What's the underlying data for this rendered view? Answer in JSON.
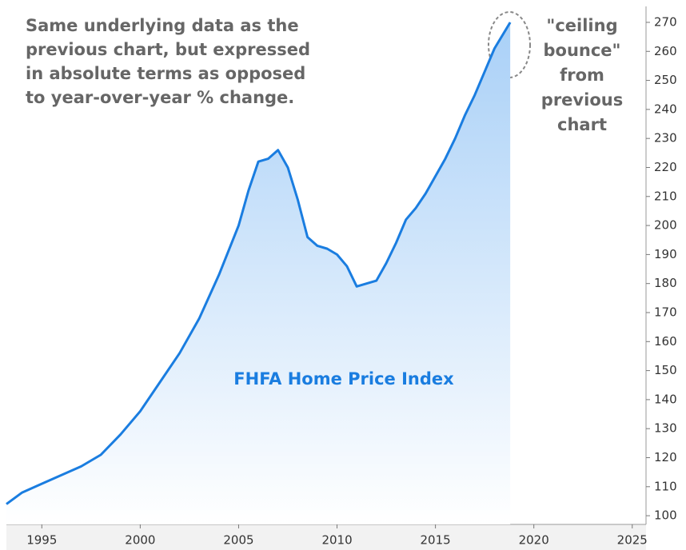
{
  "chart_data": {
    "type": "area",
    "series": [
      {
        "name": "FHFA Home Price Index",
        "color": "#1a7de0",
        "x": [
          1993.2,
          1994,
          1995,
          1996,
          1997,
          1998,
          1999,
          2000,
          2001,
          2002,
          2003,
          2004,
          2005,
          2005.5,
          2006,
          2006.5,
          2007,
          2007.5,
          2008,
          2008.5,
          2009,
          2009.5,
          2010,
          2010.5,
          2011,
          2011.5,
          2012,
          2012.5,
          2013,
          2013.5,
          2014,
          2014.5,
          2015,
          2015.5,
          2016,
          2016.5,
          2017,
          2017.5,
          2018,
          2018.8
        ],
        "values": [
          104,
          108,
          111,
          114,
          117,
          121,
          128,
          136,
          146,
          156,
          168,
          183,
          200,
          212,
          222,
          223,
          226,
          220,
          209,
          196,
          193,
          192,
          190,
          186,
          179,
          180,
          181,
          187,
          194,
          202,
          206,
          211,
          217,
          223,
          230,
          238,
          245,
          253,
          261,
          270
        ]
      }
    ],
    "xlim": [
      1993.2,
      2025.7
    ],
    "xticks": [
      1995,
      2000,
      2005,
      2010,
      2015,
      2020,
      2025
    ],
    "ylim": [
      97,
      275.5
    ],
    "yticks": [
      100,
      110,
      120,
      130,
      140,
      150,
      160,
      170,
      180,
      190,
      200,
      210,
      220,
      230,
      240,
      250,
      260,
      270
    ],
    "annotations": [
      {
        "lines": [
          "Same underlying data as the",
          "previous chart, but expressed",
          "in absolute terms as opposed",
          "to year-over-year % change."
        ]
      },
      {
        "lines": [
          "\"ceiling",
          "bounce\"",
          "from",
          "previous",
          "chart"
        ]
      }
    ]
  }
}
